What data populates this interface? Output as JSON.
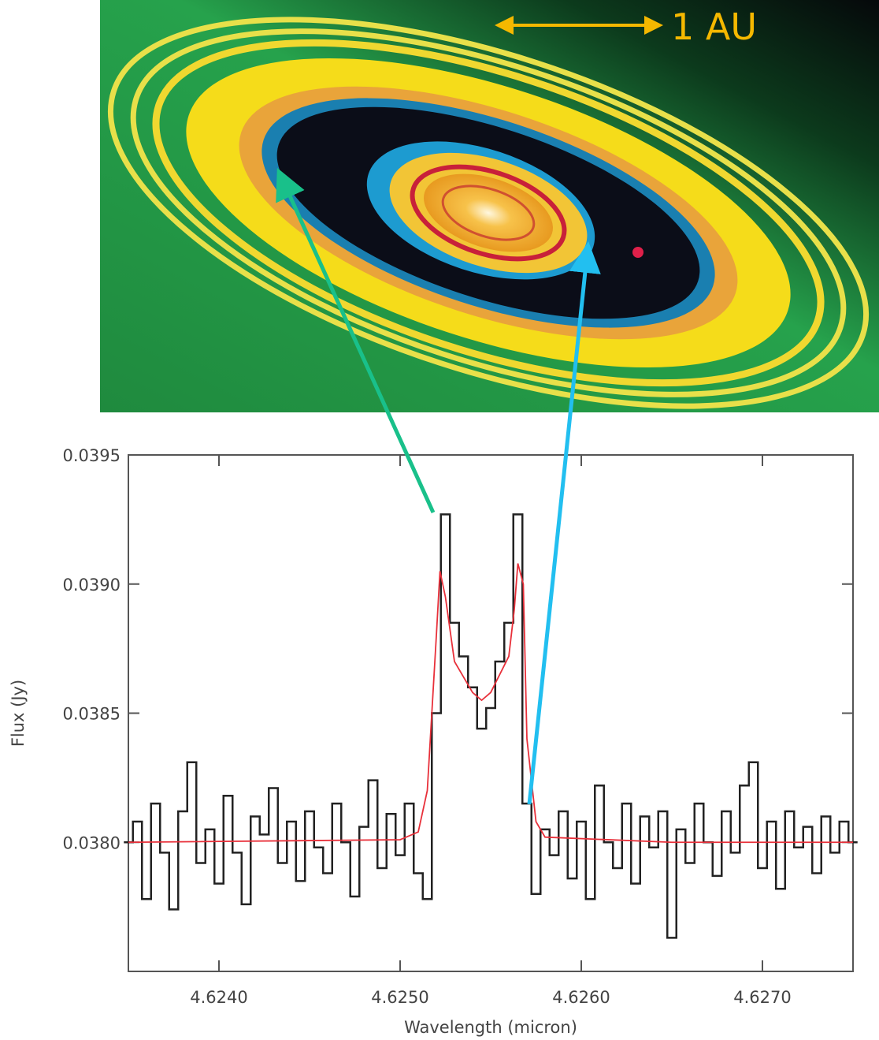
{
  "annotation": "1 AU",
  "chart_data": {
    "type": "line",
    "xlabel": "Wavelength (micron)",
    "ylabel": "Flux (Jy)",
    "xlim": [
      4.6235,
      4.6275
    ],
    "ylim": [
      0.0375,
      0.0395
    ],
    "xticks": [
      {
        "value": 4.624,
        "label": "4.6240"
      },
      {
        "value": 4.625,
        "label": "4.6250"
      },
      {
        "value": 4.626,
        "label": "4.6260"
      },
      {
        "value": 4.627,
        "label": "4.6270"
      }
    ],
    "yticks": [
      {
        "value": 0.038,
        "label": "0.0380"
      },
      0.0385,
      {
        "value": 0.039,
        "label": "0.0390"
      },
      0.0395
    ],
    "series": [
      {
        "color": "#222222",
        "step": true,
        "x": [
          4.6235,
          4.62355,
          4.6236,
          4.62365,
          4.6237,
          4.62375,
          4.6238,
          4.62385,
          4.6239,
          4.62395,
          4.624,
          4.62405,
          4.6241,
          4.62415,
          4.6242,
          4.62425,
          4.6243,
          4.62435,
          4.6244,
          4.62445,
          4.6245,
          4.62455,
          4.6246,
          4.62465,
          4.6247,
          4.62475,
          4.6248,
          4.62485,
          4.6249,
          4.62495,
          4.625,
          4.62505,
          4.6251,
          4.62515,
          4.6252,
          4.62525,
          4.6253,
          4.62535,
          4.6254,
          4.62545,
          4.6255,
          4.62555,
          4.6256,
          4.62565,
          4.6257,
          4.62575,
          4.6258,
          4.62585,
          4.6259,
          4.62595,
          4.626,
          4.62605,
          4.6261,
          4.62615,
          4.6262,
          4.62625,
          4.6263,
          4.62635,
          4.6264,
          4.62645,
          4.6265,
          4.62655,
          4.6266,
          4.62665,
          4.6267,
          4.62675,
          4.6268,
          4.62685,
          4.6269,
          4.62695,
          4.627,
          4.62705,
          4.6271,
          4.62715,
          4.6272,
          4.62725,
          4.6273,
          4.62735,
          4.6274,
          4.62745,
          4.6275
        ],
        "values": [
          0.038,
          0.03808,
          0.03778,
          0.03815,
          0.03796,
          0.03774,
          0.03812,
          0.03831,
          0.03792,
          0.03805,
          0.03784,
          0.03818,
          0.03796,
          0.03776,
          0.0381,
          0.03803,
          0.03821,
          0.03792,
          0.03808,
          0.03785,
          0.03812,
          0.03798,
          0.03788,
          0.03815,
          0.038,
          0.03779,
          0.03806,
          0.03824,
          0.0379,
          0.03811,
          0.03795,
          0.03815,
          0.03788,
          0.03778,
          0.0385,
          0.03927,
          0.03885,
          0.03872,
          0.0386,
          0.03844,
          0.03852,
          0.0387,
          0.03885,
          0.03927,
          0.03815,
          0.0378,
          0.03805,
          0.03795,
          0.03812,
          0.03786,
          0.03808,
          0.03778,
          0.03822,
          0.038,
          0.0379,
          0.03815,
          0.03784,
          0.0381,
          0.03798,
          0.03812,
          0.03763,
          0.03805,
          0.03792,
          0.03815,
          0.038,
          0.03787,
          0.03812,
          0.03796,
          0.03822,
          0.03831,
          0.0379,
          0.03808,
          0.03782,
          0.03812,
          0.03798,
          0.03806,
          0.03788,
          0.0381,
          0.03796,
          0.03808,
          0.038
        ]
      },
      {
        "color": "#e8303a",
        "step": false,
        "x": [
          4.6235,
          4.625,
          4.6251,
          4.62515,
          4.6252,
          4.62522,
          4.62525,
          4.6253,
          4.6254,
          4.62545,
          4.6255,
          4.6256,
          4.62563,
          4.62565,
          4.62568,
          4.6257,
          4.62575,
          4.6258,
          4.6265,
          4.6275
        ],
        "values": [
          0.038,
          0.03801,
          0.03804,
          0.0382,
          0.0388,
          0.03905,
          0.03895,
          0.0387,
          0.03858,
          0.03855,
          0.03858,
          0.03872,
          0.0389,
          0.03908,
          0.039,
          0.0384,
          0.03808,
          0.03802,
          0.038,
          0.038
        ]
      }
    ]
  }
}
